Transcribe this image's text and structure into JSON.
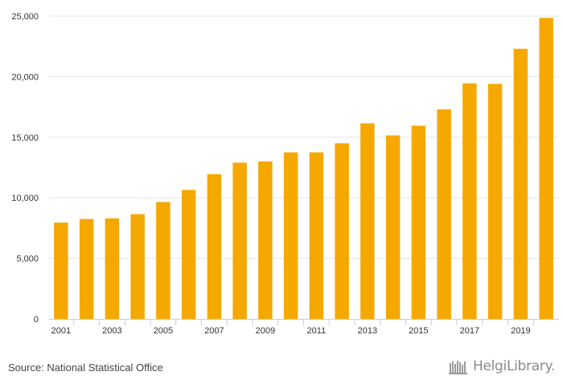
{
  "chart_data": {
    "type": "bar",
    "title": "",
    "xlabel": "",
    "ylabel": "",
    "categories": [
      "2001",
      "2002",
      "2003",
      "2004",
      "2005",
      "2006",
      "2007",
      "2008",
      "2009",
      "2010",
      "2011",
      "2012",
      "2013",
      "2014",
      "2015",
      "2016",
      "2017",
      "2018",
      "2019",
      "2020"
    ],
    "x_tick_labels": [
      "2001",
      "",
      "2003",
      "",
      "2005",
      "",
      "2007",
      "",
      "2009",
      "",
      "2011",
      "",
      "2013",
      "",
      "2015",
      "",
      "2017",
      "",
      "2019",
      ""
    ],
    "values": [
      7950,
      8250,
      8300,
      8650,
      9650,
      10650,
      11950,
      12900,
      13000,
      13750,
      13750,
      14500,
      16150,
      15150,
      15950,
      17300,
      19450,
      19400,
      22300,
      24850
    ],
    "ylim": [
      0,
      25000
    ],
    "y_ticks": [
      0,
      5000,
      10000,
      15000,
      20000,
      25000
    ],
    "y_tick_labels": [
      "0",
      "5,000",
      "10,000",
      "15,000",
      "20,000",
      "25,000"
    ],
    "bar_color": "#f5a800",
    "grid": true
  },
  "footer": {
    "source": "Source: National Statistical Office",
    "logo_text": "HelgiLibrary."
  },
  "colors": {
    "bar": "#f5a800",
    "grid": "#e6e6e6",
    "text": "#333333"
  }
}
